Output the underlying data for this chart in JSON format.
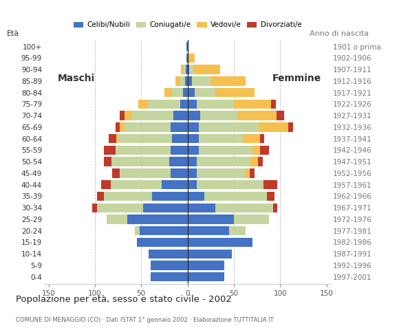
{
  "age_groups": [
    "100+",
    "95-99",
    "90-94",
    "85-89",
    "80-84",
    "75-79",
    "70-74",
    "65-69",
    "60-64",
    "55-59",
    "50-54",
    "45-49",
    "40-44",
    "35-39",
    "30-34",
    "25-29",
    "20-24",
    "15-19",
    "10-14",
    "5-9",
    "0-4"
  ],
  "birth_years": [
    "1901 o prima",
    "1902-1906",
    "1907-1911",
    "1912-1916",
    "1917-1921",
    "1922-1926",
    "1927-1931",
    "1932-1936",
    "1937-1941",
    "1942-1946",
    "1947-1951",
    "1952-1956",
    "1957-1961",
    "1962-1966",
    "1967-1971",
    "1972-1976",
    "1977-1981",
    "1982-1986",
    "1987-1991",
    "1992-1996",
    "1997-2001"
  ],
  "colors": {
    "celibe": "#4472C4",
    "coniugato": "#C5D5A0",
    "vedovo": "#F5C050",
    "divorziato": "#C0392B"
  },
  "males_celibe": [
    1,
    1,
    2,
    3,
    5,
    8,
    15,
    18,
    17,
    18,
    20,
    18,
    28,
    38,
    48,
    65,
    52,
    55,
    42,
    40,
    40
  ],
  "males_coniugato": [
    0,
    0,
    2,
    5,
    12,
    35,
    45,
    50,
    58,
    60,
    62,
    55,
    55,
    52,
    50,
    22,
    5,
    0,
    0,
    0,
    0
  ],
  "males_vedovo": [
    0,
    0,
    3,
    5,
    8,
    10,
    8,
    5,
    2,
    0,
    0,
    0,
    0,
    0,
    0,
    0,
    0,
    0,
    0,
    0,
    0
  ],
  "males_divorziato": [
    0,
    0,
    0,
    0,
    0,
    0,
    5,
    5,
    8,
    12,
    8,
    8,
    10,
    8,
    5,
    0,
    0,
    0,
    0,
    0,
    0
  ],
  "females_celibe": [
    0,
    0,
    2,
    5,
    8,
    10,
    14,
    12,
    12,
    12,
    10,
    10,
    10,
    18,
    30,
    50,
    45,
    70,
    48,
    40,
    40
  ],
  "females_coniugato": [
    0,
    0,
    5,
    20,
    22,
    40,
    40,
    65,
    48,
    58,
    58,
    52,
    72,
    68,
    62,
    38,
    18,
    0,
    0,
    0,
    0
  ],
  "females_vedovo": [
    0,
    8,
    28,
    38,
    42,
    40,
    42,
    32,
    18,
    8,
    8,
    5,
    0,
    0,
    0,
    0,
    0,
    0,
    0,
    0,
    0
  ],
  "females_divorziato": [
    0,
    0,
    0,
    0,
    0,
    5,
    8,
    5,
    5,
    10,
    5,
    5,
    15,
    8,
    5,
    0,
    0,
    0,
    0,
    0,
    0
  ],
  "title": "Popolazione per età, sesso e stato civile - 2002",
  "subtitle": "COMUNE DI MENAGGIO (CO) · Dati ISTAT 1° gennaio 2002 · Elaborazione TUTTITALIA.IT",
  "legend_labels": [
    "Celibi/Nubili",
    "Coniugati/e",
    "Vedovi/e",
    "Divorziati/e"
  ],
  "background_color": "#ffffff",
  "grid_color": "#aaaaaa"
}
